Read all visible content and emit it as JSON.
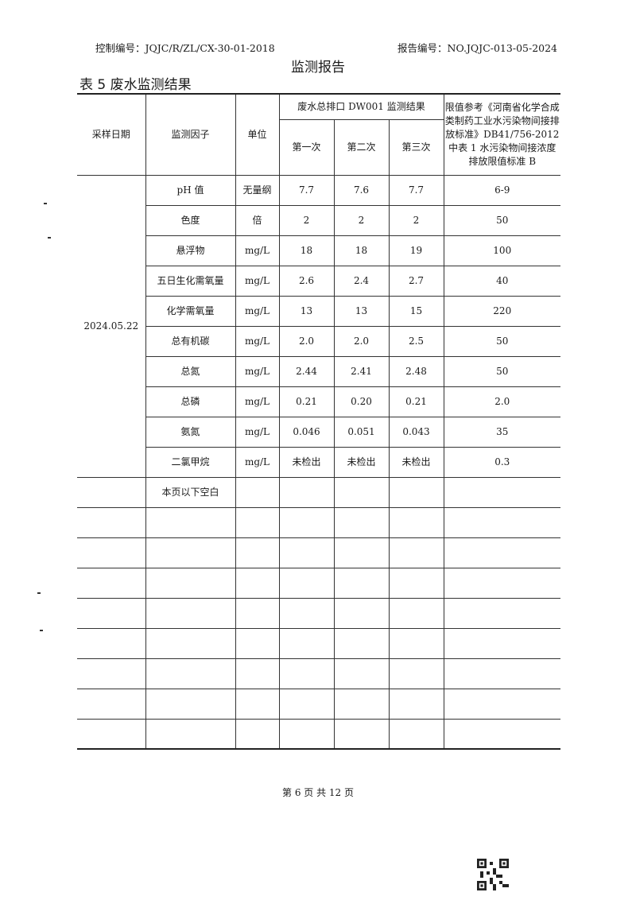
{
  "header": {
    "control_no": "控制编号：JQJC/R/ZL/CX-30-01-2018",
    "report_no": "报告编号：NO.JQJC-013-05-2024",
    "title": "监测报告",
    "table_title": "表 5  废水监测结果"
  },
  "table": {
    "col_date": "采样日期",
    "col_factor": "监测因子",
    "col_unit": "单位",
    "col_group": "废水总排口  DW001  监测结果",
    "col_runs": [
      "第一次",
      "第二次",
      "第三次"
    ],
    "col_limit": "限值参考《河南省化学合成类制药工业水污染物间接排放标准》DB41/756-2012 中表 1 水污染物间接浓度排放限值标准 B",
    "date": "2024.05.22",
    "rows": [
      {
        "factor": "pH 值",
        "unit": "无量纲",
        "r1": "7.7",
        "r2": "7.6",
        "r3": "7.7",
        "limit": "6-9"
      },
      {
        "factor": "色度",
        "unit": "倍",
        "r1": "2",
        "r2": "2",
        "r3": "2",
        "limit": "50"
      },
      {
        "factor": "悬浮物",
        "unit": "mg/L",
        "r1": "18",
        "r2": "18",
        "r3": "19",
        "limit": "100"
      },
      {
        "factor": "五日生化需氧量",
        "unit": "mg/L",
        "r1": "2.6",
        "r2": "2.4",
        "r3": "2.7",
        "limit": "40"
      },
      {
        "factor": "化学需氧量",
        "unit": "mg/L",
        "r1": "13",
        "r2": "13",
        "r3": "15",
        "limit": "220"
      },
      {
        "factor": "总有机碳",
        "unit": "mg/L",
        "r1": "2.0",
        "r2": "2.0",
        "r3": "2.5",
        "limit": "50"
      },
      {
        "factor": "总氮",
        "unit": "mg/L",
        "r1": "2.44",
        "r2": "2.41",
        "r3": "2.48",
        "limit": "50"
      },
      {
        "factor": "总磷",
        "unit": "mg/L",
        "r1": "0.21",
        "r2": "0.20",
        "r3": "0.21",
        "limit": "2.0"
      },
      {
        "factor": "氨氮",
        "unit": "mg/L",
        "r1": "0.046",
        "r2": "0.051",
        "r3": "0.043",
        "limit": "35"
      },
      {
        "factor": "二氯甲烷",
        "unit": "mg/L",
        "r1": "未检出",
        "r2": "未检出",
        "r3": "未检出",
        "limit": "0.3"
      }
    ],
    "blank_note": "本页以下空白"
  },
  "footer": {
    "page": "第 6 页 共 12 页"
  }
}
